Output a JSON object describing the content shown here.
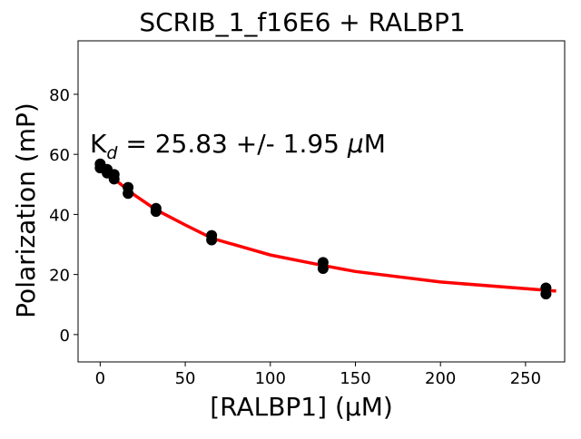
{
  "chart_data": {
    "type": "scatter",
    "title": "SCRIB_1_f16E6 + RALBP1",
    "x_label": "[RALBP1] (μM)",
    "y_label": "Polarization (mP)",
    "annotation": [
      "K",
      "d",
      " = 25.83 +/- 1.95 ",
      "μ",
      "M"
    ],
    "xlim": [
      -13,
      273
    ],
    "ylim": [
      -9.1,
      97.8
    ],
    "xticks": [
      0,
      50,
      100,
      150,
      200,
      250
    ],
    "yticks": [
      0,
      20,
      40,
      60,
      80
    ],
    "grid": false,
    "series": [
      {
        "kind": "points",
        "color": "#000000",
        "x": [
          0,
          0,
          4.1,
          4.1,
          8.2,
          8.2,
          16.4,
          16.4,
          32.8,
          32.8,
          65.5,
          65.5,
          131,
          131,
          262,
          262
        ],
        "values": [
          55.5,
          56.8,
          53.8,
          55,
          51.8,
          53.3,
          47,
          49,
          41,
          42,
          31.5,
          33,
          22,
          24,
          13.5,
          15.5
        ]
      },
      {
        "kind": "fit",
        "color": "#ff0000",
        "x": [
          0,
          10,
          20,
          33,
          50,
          66,
          100,
          131,
          150,
          200,
          268
        ],
        "values": [
          56,
          51,
          46.5,
          41.5,
          36.5,
          32,
          26.5,
          23,
          21,
          17.5,
          14.5
        ]
      }
    ]
  }
}
